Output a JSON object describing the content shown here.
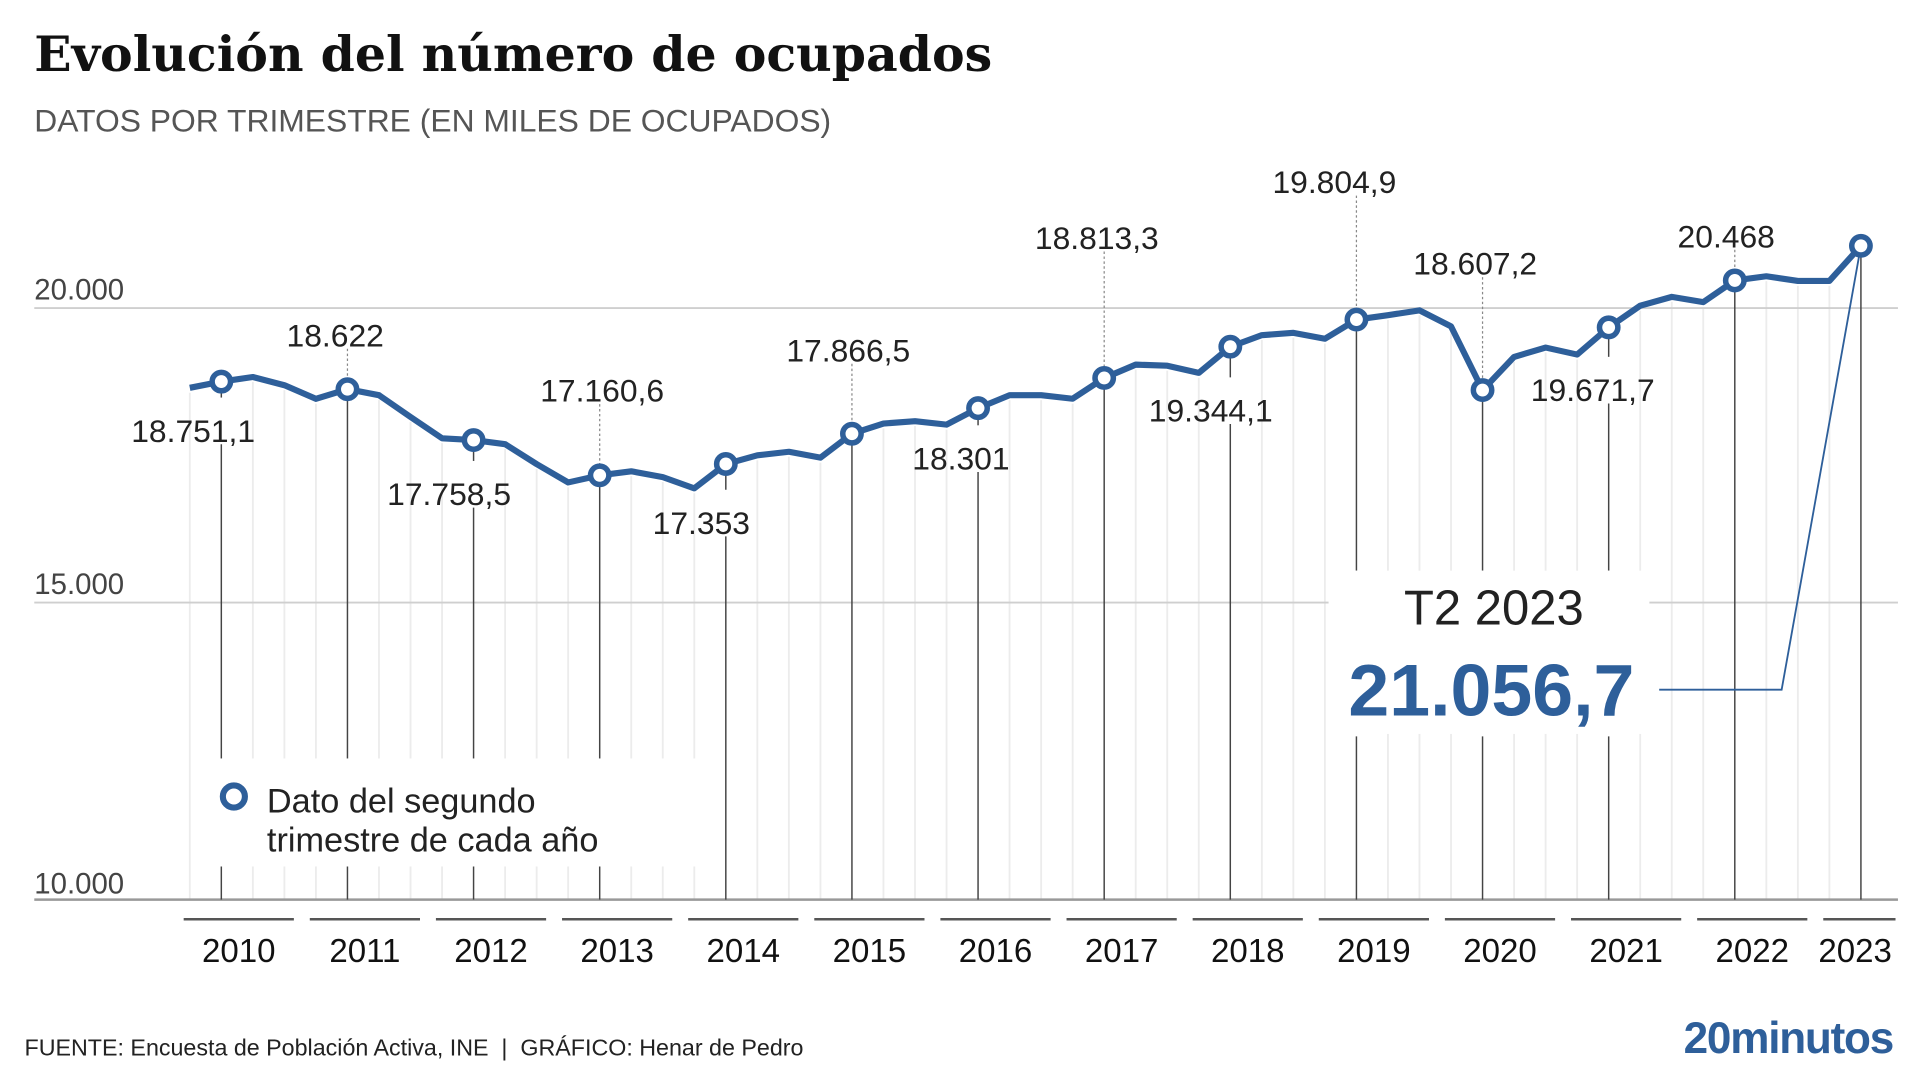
{
  "title": "Evolución del número de ocupados",
  "subtitle": "DATOS POR TRIMESTRE (EN MILES DE OCUPADOS)",
  "footer": {
    "source": "FUENTE: Encuesta de Población Activa, INE  |  GRÁFICO: Henar de Pedro",
    "logo": "20minutos"
  },
  "colors": {
    "line": "#2e5f9a",
    "text": "#222222",
    "subtitle": "#555555",
    "grid": "#cfcfcf"
  },
  "chart_data": {
    "type": "line",
    "title": "Evolución del número de ocupados",
    "subtitle": "DATOS POR TRIMESTRE (EN MILES DE OCUPADOS)",
    "xlabel": "",
    "ylabel": "",
    "ylim": [
      10000,
      21500
    ],
    "yticks": [
      10000,
      15000,
      20000
    ],
    "ytick_labels": [
      "10.000",
      "15.000",
      "20.000"
    ],
    "grid": true,
    "years": [
      "2010",
      "2011",
      "2012",
      "2013",
      "2014",
      "2015",
      "2016",
      "2017",
      "2018",
      "2019",
      "2020",
      "2021",
      "2022",
      "2023"
    ],
    "series": [
      {
        "values": [
          18646,
          18751.1,
          18830,
          18690,
          18458,
          18622,
          18520,
          18150,
          17790,
          17758.5,
          17690,
          17350,
          17040,
          17160.6,
          17230,
          17130,
          16940,
          17353,
          17500,
          17560,
          17460,
          17866.5,
          18040,
          18080,
          18020,
          18301,
          18520,
          18520,
          18460,
          18813.3,
          19040,
          19020,
          18900,
          19344.1,
          19540,
          19580,
          19480,
          19804.9,
          19880,
          19960,
          19690,
          18607.2,
          19170,
          19330,
          19210,
          19671.7,
          20040,
          20190,
          20100,
          20468,
          20540,
          20460,
          20460,
          21056.7
        ]
      }
    ],
    "q2_labels": [
      "18.751,1",
      "18.622",
      "17.758,5",
      "17.160,6",
      "17.353",
      "17.866,5",
      "18.301",
      "18.813,3",
      "19.344,1",
      "19.804,9",
      "18.607,2",
      "19.671,7",
      "20.468"
    ],
    "legend": {
      "line1": "Dato del segundo",
      "line2": "trimestre de cada año",
      "placement": "bottom-left"
    },
    "annotation": {
      "period": "T2 2023",
      "value": "21.056,7"
    }
  }
}
